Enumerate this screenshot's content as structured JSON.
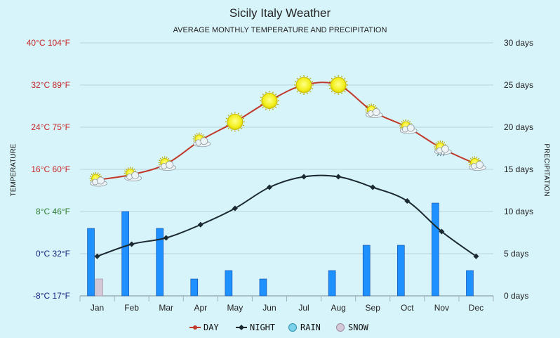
{
  "chart_data": {
    "type": "bar+line",
    "title": "Sicily Italy Weather",
    "subtitle": "AVERAGE MONTHLY TEMPERATURE AND PRECIPITATION",
    "ylabel_left": "TEMPERATURE",
    "ylabel_right": "PRECIPITATION",
    "categories": [
      "Jan",
      "Feb",
      "Mar",
      "Apr",
      "May",
      "Jun",
      "Jul",
      "Aug",
      "Sep",
      "Oct",
      "Nov",
      "Dec"
    ],
    "y_left_ticks": [
      {
        "value": 40,
        "label": "40°C 104°F",
        "color": "#c62828"
      },
      {
        "value": 32,
        "label": "32°C 89°F",
        "color": "#c62828"
      },
      {
        "value": 24,
        "label": "24°C 75°F",
        "color": "#c62828"
      },
      {
        "value": 16,
        "label": "16°C 60°F",
        "color": "#c62828"
      },
      {
        "value": 8,
        "label": "8°C 46°F",
        "color": "#2e7d32"
      },
      {
        "value": 0,
        "label": "0°C 32°F",
        "color": "#1a237e"
      },
      {
        "value": -8,
        "label": "-8°C 17°F",
        "color": "#1a237e"
      }
    ],
    "y_right_ticks": [
      {
        "value": 30,
        "label": "30 days"
      },
      {
        "value": 25,
        "label": "25 days"
      },
      {
        "value": 20,
        "label": "20 days"
      },
      {
        "value": 15,
        "label": "15 days"
      },
      {
        "value": 10,
        "label": "10 days"
      },
      {
        "value": 5,
        "label": "5 days"
      },
      {
        "value": 0,
        "label": "0 days"
      }
    ],
    "ylim_left": [
      -8,
      40
    ],
    "ylim_right": [
      0,
      30
    ],
    "series": [
      {
        "name": "DAY",
        "type": "line",
        "axis": "left",
        "color": "#c0392b",
        "values": [
          14,
          15,
          17,
          21.5,
          25,
          29,
          32,
          32,
          27,
          24,
          20,
          17
        ],
        "weather_icons": [
          "partly-cloudy",
          "partly-cloudy",
          "partly-cloudy",
          "partly-cloudy",
          "sunny",
          "sunny",
          "sunny",
          "sunny",
          "partly-cloudy",
          "partly-cloudy",
          "partly-cloudy-rain",
          "partly-cloudy"
        ]
      },
      {
        "name": "NIGHT",
        "type": "line",
        "axis": "left",
        "color": "#1a2a30",
        "values": [
          -0.5,
          1.8,
          3,
          5.5,
          8.6,
          12.6,
          14.6,
          14.6,
          12.6,
          10,
          4.2,
          -0.5
        ]
      },
      {
        "name": "RAIN",
        "type": "bar",
        "axis": "right",
        "color": "#1e90ff",
        "values": [
          8,
          10,
          8,
          2,
          3,
          2,
          0,
          3,
          6,
          6,
          11,
          3
        ]
      },
      {
        "name": "SNOW",
        "type": "bar",
        "axis": "right",
        "color": "#d5c8d6",
        "values": [
          2,
          0,
          0,
          0,
          0,
          0,
          0,
          0,
          0,
          0,
          0,
          0
        ]
      }
    ],
    "legend_placement": "bottom",
    "grid": true
  }
}
